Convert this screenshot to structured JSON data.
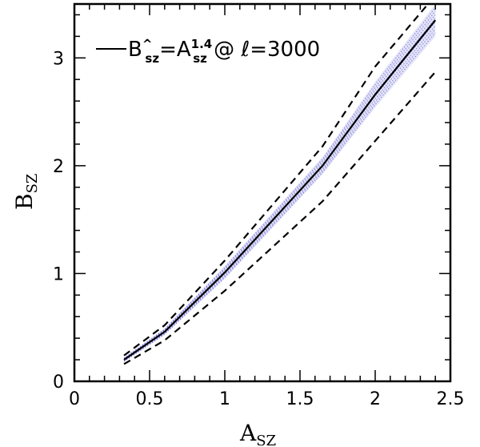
{
  "chart_data": {
    "type": "line",
    "xlim": [
      0,
      2.5
    ],
    "ylim": [
      0,
      3.5
    ],
    "x_ticks": [
      "0",
      "0.5",
      "1",
      "1.5",
      "2",
      "2.5"
    ],
    "y_ticks": [
      "0",
      "1",
      "2",
      "3"
    ],
    "xlabel": {
      "main": "A",
      "sub": "SZ"
    },
    "ylabel": {
      "main": "B",
      "sub": "SZ"
    },
    "legend": {
      "prefix": "B",
      "hat": "^",
      "sub1": "sz",
      "eq": "=A",
      "sup": "1.4",
      "sub2": "sz",
      "suffix": " @ ",
      "ell": "ℓ",
      "value": "=3000",
      "placement": "top-left"
    },
    "series": [
      {
        "style": "solid",
        "x": [
          0.33,
          0.6,
          1.0,
          1.65,
          2.0,
          2.4
        ],
        "y": [
          0.2,
          0.46,
          1.01,
          2.0,
          2.66,
          3.35
        ]
      },
      {
        "style": "dashed",
        "x": [
          0.33,
          0.6,
          1.0,
          1.65,
          2.0,
          2.4
        ],
        "y": [
          0.24,
          0.52,
          1.12,
          2.18,
          2.92,
          3.58
        ]
      },
      {
        "style": "dashed",
        "x": [
          0.33,
          0.6,
          1.0,
          1.65,
          2.0,
          2.4
        ],
        "y": [
          0.16,
          0.38,
          0.84,
          1.67,
          2.23,
          2.87
        ]
      }
    ],
    "band": {
      "color": "#6b6bd6",
      "x": [
        0.33,
        0.6,
        1.0,
        1.65,
        2.0,
        2.4
      ],
      "upper": [
        0.22,
        0.49,
        1.07,
        2.08,
        2.78,
        3.5
      ],
      "lower": [
        0.18,
        0.43,
        0.95,
        1.92,
        2.54,
        3.2
      ]
    },
    "grid": false
  }
}
